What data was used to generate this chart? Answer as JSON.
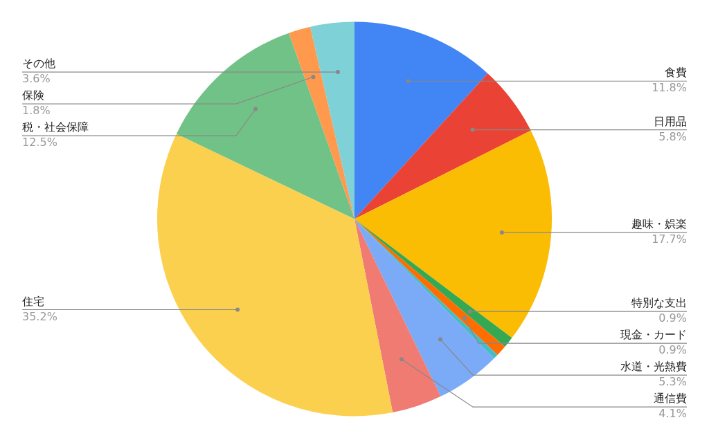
{
  "chart_data": {
    "type": "pie",
    "categories": [
      "食費",
      "日用品",
      "趣味・娯楽",
      "特別な支出",
      "現金・カード",
      null,
      "水道・光熱費",
      "通信費",
      "住宅",
      "税・社会保障",
      "保険",
      "その他"
    ],
    "values": [
      11.8,
      5.8,
      17.7,
      0.9,
      0.9,
      0.4,
      5.3,
      4.1,
      35.2,
      12.5,
      1.8,
      3.6
    ],
    "value_labels": [
      "11.8%",
      "5.8%",
      "17.7%",
      "0.9%",
      "0.9%",
      null,
      "5.3%",
      "4.1%",
      "35.2%",
      "12.5%",
      "1.8%",
      "3.6%"
    ],
    "colors": [
      "#4285f4",
      "#ea4335",
      "#fbbc04",
      "#34a853",
      "#ff6d01",
      "#46bdc6",
      "#7baaf7",
      "#f07b72",
      "#fcd04f",
      "#71c287",
      "#ff994d",
      "#7ed1d7"
    ],
    "legend": false
  }
}
